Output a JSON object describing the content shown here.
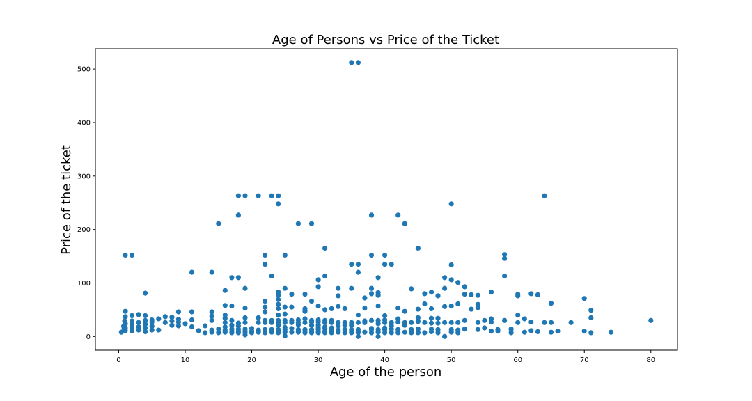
{
  "chart_data": {
    "type": "scatter",
    "title": "Age of Persons vs Price of the Ticket",
    "xlabel": "Age of the person",
    "ylabel": "Price of the ticket",
    "xlim": [
      -3.5,
      84
    ],
    "ylim": [
      -25.6,
      537.9
    ],
    "x_ticks": [
      0,
      10,
      20,
      30,
      40,
      50,
      60,
      70,
      80
    ],
    "y_ticks": [
      0,
      100,
      200,
      300,
      400,
      500
    ],
    "grid": false,
    "legend": "none",
    "marker_color": "#1f77b4",
    "points": [
      [
        35,
        512
      ],
      [
        36,
        512
      ],
      [
        18,
        263
      ],
      [
        19,
        263
      ],
      [
        21,
        263
      ],
      [
        23,
        263
      ],
      [
        24,
        263
      ],
      [
        64,
        263
      ],
      [
        24,
        248
      ],
      [
        50,
        248
      ],
      [
        18,
        227
      ],
      [
        38,
        227
      ],
      [
        42,
        227
      ],
      [
        15,
        211
      ],
      [
        27,
        211
      ],
      [
        29,
        211
      ],
      [
        43,
        211
      ],
      [
        31,
        165
      ],
      [
        45,
        165
      ],
      [
        1,
        152
      ],
      [
        2,
        152
      ],
      [
        22,
        152
      ],
      [
        25,
        152
      ],
      [
        38,
        152
      ],
      [
        40,
        152
      ],
      [
        58,
        153
      ],
      [
        58,
        146
      ],
      [
        22,
        135
      ],
      [
        35,
        135
      ],
      [
        36,
        135
      ],
      [
        40,
        135
      ],
      [
        41,
        135
      ],
      [
        50,
        134
      ],
      [
        11,
        120
      ],
      [
        14,
        120
      ],
      [
        36,
        120
      ],
      [
        17,
        110
      ],
      [
        18,
        110
      ],
      [
        23,
        113
      ],
      [
        31,
        113
      ],
      [
        39,
        110
      ],
      [
        49,
        110
      ],
      [
        58,
        113
      ],
      [
        30,
        106
      ],
      [
        50,
        106
      ],
      [
        51,
        101
      ],
      [
        44,
        89
      ],
      [
        47,
        83
      ],
      [
        16,
        86
      ],
      [
        19,
        90
      ],
      [
        25,
        90
      ],
      [
        30,
        93
      ],
      [
        33,
        90
      ],
      [
        35,
        90
      ],
      [
        38,
        90
      ],
      [
        46,
        80
      ],
      [
        48,
        76
      ],
      [
        49,
        90
      ],
      [
        52,
        93
      ],
      [
        53,
        78
      ],
      [
        56,
        83
      ],
      [
        4,
        81
      ],
      [
        24,
        83
      ],
      [
        28,
        79
      ],
      [
        22,
        66
      ],
      [
        24,
        69
      ],
      [
        24,
        77
      ],
      [
        26,
        79
      ],
      [
        29,
        66
      ],
      [
        33,
        76
      ],
      [
        37,
        72
      ],
      [
        38,
        80
      ],
      [
        39,
        82
      ],
      [
        39,
        77
      ],
      [
        52,
        79
      ],
      [
        54,
        77
      ],
      [
        54,
        60
      ],
      [
        60,
        79
      ],
      [
        60,
        76
      ],
      [
        62,
        80
      ],
      [
        63,
        78
      ],
      [
        70,
        71
      ],
      [
        65,
        62
      ],
      [
        71,
        49
      ],
      [
        71,
        35
      ],
      [
        74,
        8
      ],
      [
        80,
        30
      ],
      [
        66,
        10
      ],
      [
        16,
        58
      ],
      [
        17,
        57
      ],
      [
        19,
        53
      ],
      [
        22,
        55
      ],
      [
        25,
        55
      ],
      [
        26,
        55
      ],
      [
        28,
        52
      ],
      [
        30,
        57
      ],
      [
        31,
        50
      ],
      [
        32,
        52
      ],
      [
        33,
        56
      ],
      [
        34,
        52
      ],
      [
        37,
        53
      ],
      [
        39,
        57
      ],
      [
        42,
        53
      ],
      [
        43,
        47
      ],
      [
        45,
        51
      ],
      [
        46,
        61
      ],
      [
        47,
        52
      ],
      [
        49,
        56
      ],
      [
        50,
        57
      ],
      [
        51,
        61
      ],
      [
        53,
        51
      ],
      [
        54,
        54
      ],
      [
        56,
        33
      ],
      [
        59,
        14
      ],
      [
        62,
        27
      ],
      [
        64,
        26
      ],
      [
        65,
        26
      ],
      [
        70,
        10
      ],
      [
        71,
        7
      ],
      [
        58,
        30
      ],
      [
        61,
        33
      ],
      [
        60,
        26
      ],
      [
        57,
        10
      ],
      [
        54,
        13
      ],
      [
        55,
        30
      ],
      [
        56,
        27
      ],
      [
        60,
        40
      ],
      [
        61,
        8
      ],
      [
        62,
        11
      ],
      [
        63,
        9
      ],
      [
        65,
        8
      ],
      [
        68,
        26
      ],
      [
        0.4,
        8
      ],
      [
        0.75,
        19
      ],
      [
        0.8,
        14
      ],
      [
        0.9,
        29
      ],
      [
        1,
        11
      ],
      [
        1,
        37
      ],
      [
        1,
        47
      ],
      [
        1,
        16
      ],
      [
        1,
        24
      ],
      [
        2,
        10
      ],
      [
        2,
        15
      ],
      [
        2,
        22
      ],
      [
        2,
        29
      ],
      [
        2,
        39
      ],
      [
        3,
        18
      ],
      [
        3,
        26
      ],
      [
        3,
        41
      ],
      [
        3,
        12
      ],
      [
        4,
        9
      ],
      [
        4,
        16
      ],
      [
        4,
        23
      ],
      [
        4,
        30
      ],
      [
        4,
        39
      ],
      [
        5,
        12
      ],
      [
        5,
        19
      ],
      [
        5,
        27
      ],
      [
        5,
        31
      ],
      [
        6,
        12
      ],
      [
        6,
        33
      ],
      [
        7,
        26
      ],
      [
        7,
        37
      ],
      [
        8,
        21
      ],
      [
        8,
        29
      ],
      [
        8,
        36
      ],
      [
        9,
        20
      ],
      [
        9,
        27
      ],
      [
        9,
        32
      ],
      [
        9,
        46
      ],
      [
        10,
        24
      ],
      [
        11,
        18
      ],
      [
        11,
        31
      ],
      [
        11,
        46
      ],
      [
        12,
        11
      ],
      [
        13,
        7
      ],
      [
        13,
        20
      ],
      [
        14,
        8
      ],
      [
        14,
        12
      ],
      [
        14,
        30
      ],
      [
        14,
        38
      ],
      [
        14,
        46
      ],
      [
        15,
        7
      ],
      [
        15,
        14
      ],
      [
        16,
        8
      ],
      [
        16,
        12
      ],
      [
        16,
        18
      ],
      [
        16,
        26
      ],
      [
        16,
        34
      ],
      [
        16,
        40
      ],
      [
        17,
        7
      ],
      [
        17,
        10
      ],
      [
        17,
        14
      ],
      [
        17,
        21
      ],
      [
        17,
        30
      ],
      [
        18,
        7
      ],
      [
        18,
        10
      ],
      [
        18,
        14
      ],
      [
        18,
        20
      ],
      [
        18,
        25
      ],
      [
        19,
        3
      ],
      [
        19,
        7
      ],
      [
        19,
        10
      ],
      [
        19,
        14
      ],
      [
        19,
        26
      ],
      [
        19,
        35
      ],
      [
        20,
        7
      ],
      [
        20,
        10
      ],
      [
        20,
        15
      ],
      [
        20,
        9
      ],
      [
        21,
        8
      ],
      [
        21,
        12
      ],
      [
        21,
        26
      ],
      [
        21,
        35
      ],
      [
        22,
        7
      ],
      [
        22,
        10
      ],
      [
        22,
        13
      ],
      [
        22,
        26
      ],
      [
        22,
        30
      ],
      [
        22,
        46
      ],
      [
        23,
        8
      ],
      [
        23,
        13
      ],
      [
        23,
        26
      ],
      [
        23,
        30
      ],
      [
        24,
        7
      ],
      [
        24,
        10
      ],
      [
        24,
        13
      ],
      [
        24,
        21
      ],
      [
        24,
        26
      ],
      [
        24,
        30
      ],
      [
        24,
        40
      ],
      [
        24,
        52
      ],
      [
        24,
        60
      ],
      [
        25,
        1
      ],
      [
        25,
        8
      ],
      [
        25,
        13
      ],
      [
        25,
        17
      ],
      [
        25,
        26
      ],
      [
        25,
        30
      ],
      [
        25,
        42
      ],
      [
        26,
        8
      ],
      [
        26,
        15
      ],
      [
        26,
        26
      ],
      [
        26,
        30
      ],
      [
        27,
        8
      ],
      [
        27,
        11
      ],
      [
        27,
        13
      ],
      [
        27,
        22
      ],
      [
        27,
        26
      ],
      [
        27,
        31
      ],
      [
        28,
        7
      ],
      [
        28,
        10
      ],
      [
        28,
        13
      ],
      [
        28,
        26
      ],
      [
        28,
        33
      ],
      [
        28,
        47
      ],
      [
        29,
        7
      ],
      [
        29,
        9
      ],
      [
        29,
        13
      ],
      [
        29,
        21
      ],
      [
        29,
        27
      ],
      [
        29,
        30
      ],
      [
        30,
        7
      ],
      [
        30,
        9
      ],
      [
        30,
        13
      ],
      [
        30,
        16
      ],
      [
        30,
        21
      ],
      [
        30,
        27
      ],
      [
        30,
        31
      ],
      [
        31,
        7
      ],
      [
        31,
        10
      ],
      [
        31,
        15
      ],
      [
        31,
        18
      ],
      [
        31,
        26
      ],
      [
        31,
        30
      ],
      [
        32,
        7
      ],
      [
        32,
        8
      ],
      [
        32,
        13
      ],
      [
        32,
        16
      ],
      [
        32,
        26
      ],
      [
        32,
        30
      ],
      [
        33,
        8
      ],
      [
        33,
        12
      ],
      [
        33,
        20
      ],
      [
        33,
        26
      ],
      [
        34,
        7
      ],
      [
        34,
        13
      ],
      [
        34,
        21
      ],
      [
        34,
        26
      ],
      [
        35,
        7
      ],
      [
        35,
        10
      ],
      [
        35,
        13
      ],
      [
        35,
        21
      ],
      [
        35,
        26
      ],
      [
        36,
        0
      ],
      [
        36,
        7
      ],
      [
        36,
        10
      ],
      [
        36,
        13
      ],
      [
        36,
        26
      ],
      [
        36,
        40
      ],
      [
        37,
        8
      ],
      [
        37,
        26
      ],
      [
        37,
        29
      ],
      [
        38,
        7
      ],
      [
        38,
        13
      ],
      [
        38,
        15
      ],
      [
        38,
        30
      ],
      [
        39,
        0
      ],
      [
        39,
        8
      ],
      [
        39,
        13
      ],
      [
        39,
        24
      ],
      [
        39,
        30
      ],
      [
        40,
        7
      ],
      [
        40,
        13
      ],
      [
        40,
        16
      ],
      [
        40,
        26
      ],
      [
        40,
        31
      ],
      [
        40,
        39
      ],
      [
        41,
        7
      ],
      [
        41,
        14
      ],
      [
        41,
        20
      ],
      [
        41,
        26
      ],
      [
        42,
        7
      ],
      [
        42,
        13
      ],
      [
        42,
        27
      ],
      [
        42,
        33
      ],
      [
        43,
        8
      ],
      [
        43,
        21
      ],
      [
        43,
        26
      ],
      [
        44,
        7
      ],
      [
        44,
        13
      ],
      [
        44,
        26
      ],
      [
        45,
        7
      ],
      [
        45,
        14
      ],
      [
        45,
        28
      ],
      [
        45,
        35
      ],
      [
        46,
        7
      ],
      [
        46,
        26
      ],
      [
        47,
        9
      ],
      [
        47,
        14
      ],
      [
        47,
        25
      ],
      [
        47,
        34
      ],
      [
        48,
        7
      ],
      [
        48,
        13
      ],
      [
        48,
        25
      ],
      [
        48,
        34
      ],
      [
        49,
        0
      ],
      [
        49,
        26
      ],
      [
        50,
        8
      ],
      [
        50,
        13
      ],
      [
        50,
        26
      ],
      [
        51,
        7
      ],
      [
        51,
        12
      ],
      [
        51,
        26
      ],
      [
        52,
        14
      ],
      [
        52,
        30
      ],
      [
        54,
        26
      ],
      [
        55,
        16
      ],
      [
        56,
        10
      ],
      [
        57,
        13
      ],
      [
        59,
        7
      ],
      [
        59,
        14
      ]
    ]
  }
}
